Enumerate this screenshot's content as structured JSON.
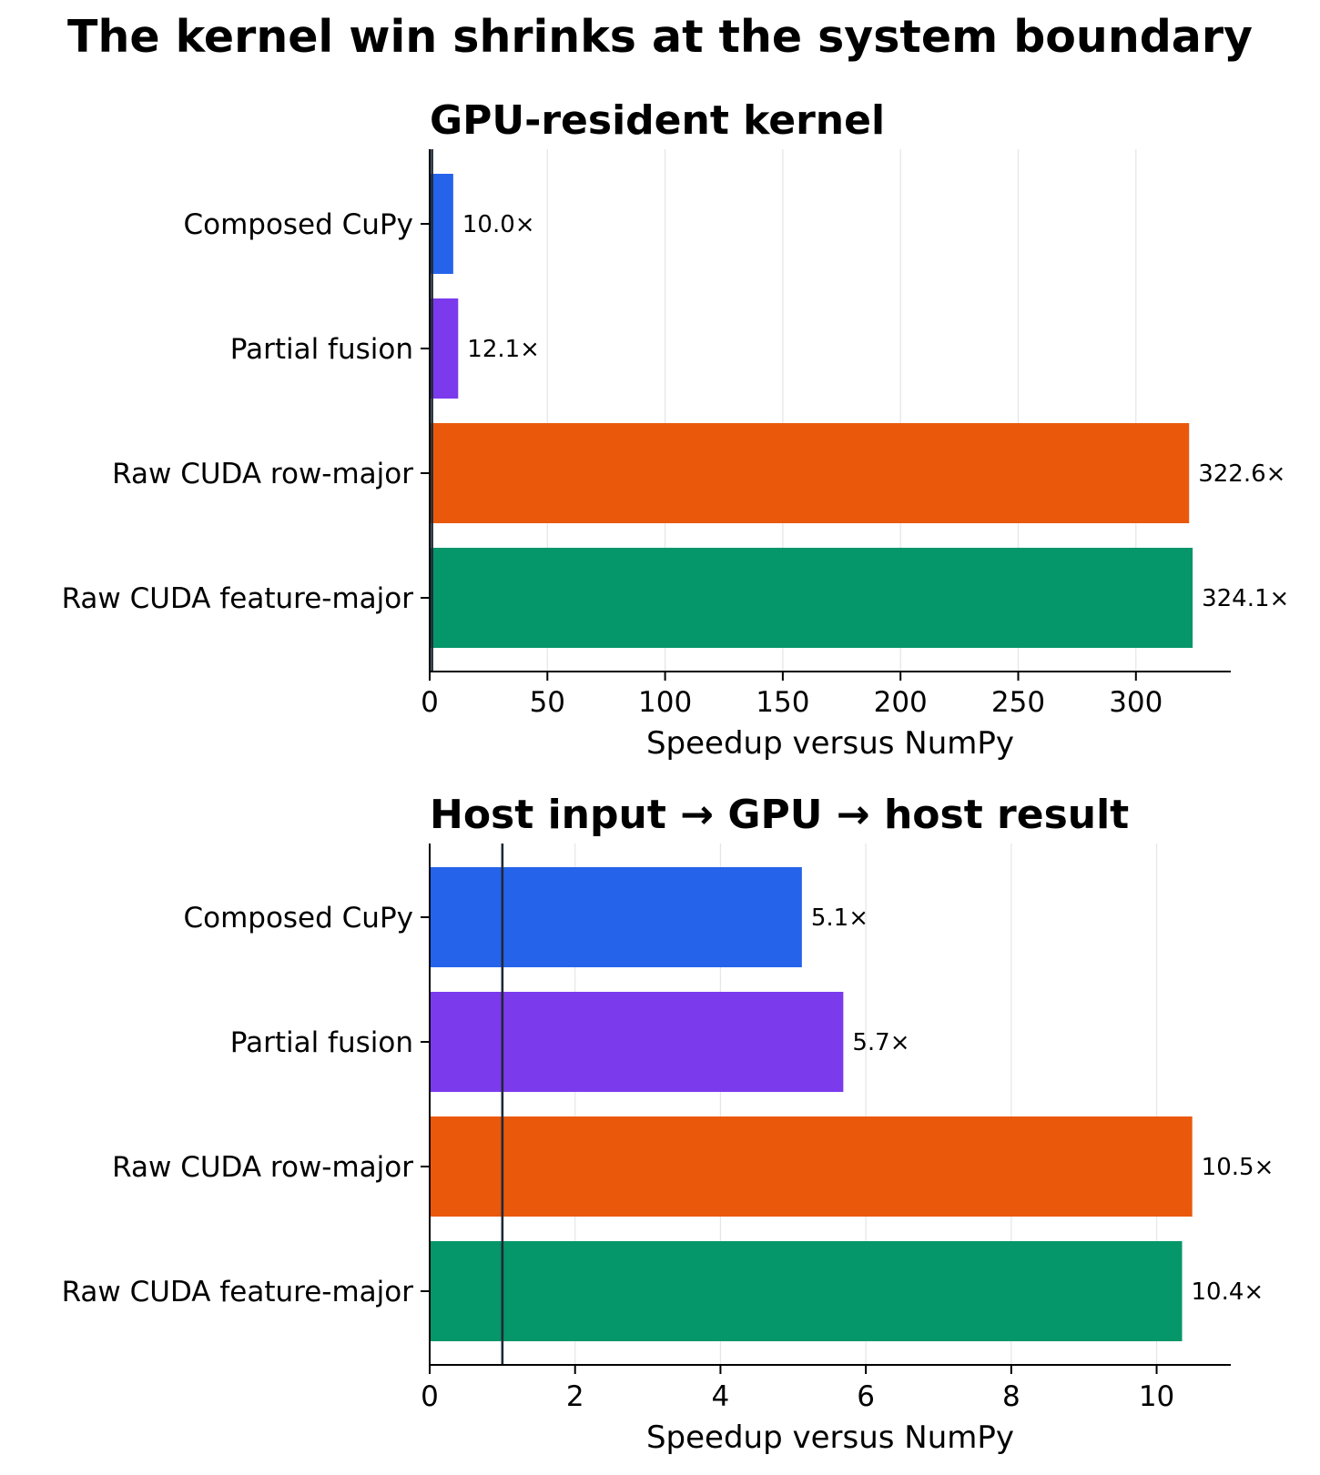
{
  "suptitle": "The kernel win shrinks at the system boundary",
  "chart_data": [
    {
      "type": "bar",
      "orientation": "horizontal",
      "title": "GPU-resident kernel",
      "xlabel": "Speedup versus NumPy",
      "ylabel": "",
      "categories": [
        "Composed CuPy",
        "Partial fusion",
        "Raw CUDA row-major",
        "Raw CUDA feature-major"
      ],
      "values": [
        10.0,
        12.1,
        322.6,
        324.1
      ],
      "value_labels": [
        "10.0×",
        "12.1×",
        "322.6×",
        "324.1×"
      ],
      "colors": [
        "#2563eb",
        "#7c3aed",
        "#ea580c",
        "#059669"
      ],
      "xlim": [
        0,
        340.3
      ],
      "xticks": [
        0,
        50,
        100,
        150,
        200,
        250,
        300
      ],
      "xtick_labels": [
        "0",
        "50",
        "100",
        "150",
        "200",
        "250",
        "300"
      ],
      "reference_line": 1,
      "grid": "x"
    },
    {
      "type": "bar",
      "orientation": "horizontal",
      "title": "Host input → GPU → host result",
      "xlabel": "Speedup versus NumPy",
      "ylabel": "",
      "categories": [
        "Composed CuPy",
        "Partial fusion",
        "Raw CUDA row-major",
        "Raw CUDA feature-major"
      ],
      "values": [
        5.12,
        5.69,
        10.49,
        10.35
      ],
      "value_labels": [
        "5.1×",
        "5.7×",
        "10.5×",
        "10.4×"
      ],
      "colors": [
        "#2563eb",
        "#7c3aed",
        "#ea580c",
        "#059669"
      ],
      "xlim": [
        0,
        11.02
      ],
      "xticks": [
        0,
        2,
        4,
        6,
        8,
        10
      ],
      "xtick_labels": [
        "0",
        "2",
        "4",
        "6",
        "8",
        "10"
      ],
      "reference_line": 1,
      "grid": "x"
    }
  ]
}
